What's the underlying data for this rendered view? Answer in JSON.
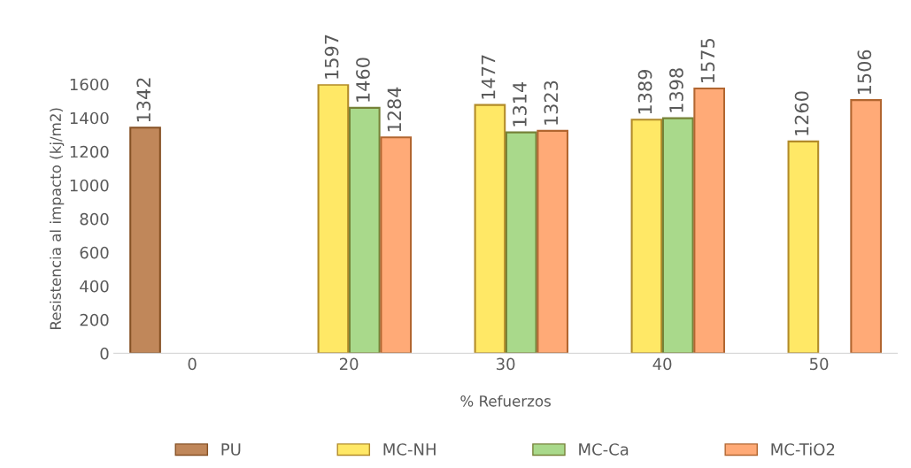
{
  "chart_data": {
    "type": "bar",
    "xlabel": "% Refuerzos",
    "ylabel": "Resistencia al impacto (kj/m2)",
    "categories": [
      "0",
      "20",
      "30",
      "40",
      "50"
    ],
    "series": [
      {
        "name": "PU",
        "color": "#c0875a",
        "values": [
          1342,
          null,
          null,
          null,
          null
        ]
      },
      {
        "name": "MC-NH",
        "color": "#ffe866",
        "values": [
          null,
          1597,
          1477,
          1389,
          1260
        ]
      },
      {
        "name": "MC-Ca",
        "color": "#a9d98b",
        "values": [
          null,
          1460,
          1314,
          1398,
          null
        ]
      },
      {
        "name": "MC-TiO2",
        "color": "#ffaa77",
        "values": [
          null,
          1284,
          1323,
          1575,
          1506
        ]
      }
    ],
    "ylim": [
      0,
      1600
    ],
    "yticks": [
      0,
      200,
      400,
      600,
      800,
      1000,
      1200,
      1400,
      1600
    ],
    "data_labels": true,
    "legend": "bottom",
    "grid": false
  }
}
